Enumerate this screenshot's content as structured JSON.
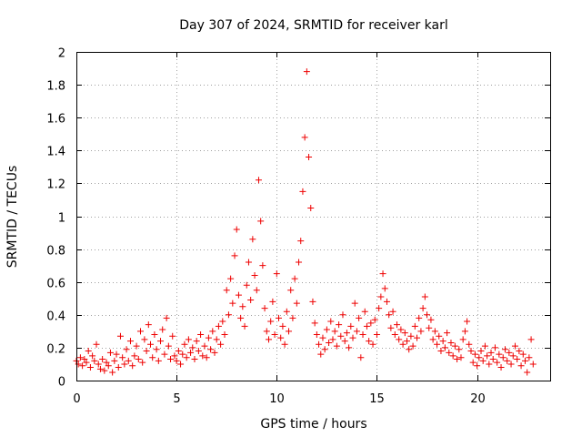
{
  "chart_data": {
    "type": "scatter",
    "title": "Day 307 of 2024, SRMTID for receiver karl",
    "xlabel": "GPS time / hours",
    "ylabel": "SRMTID / TECUs",
    "xlim": [
      0,
      23.65
    ],
    "ylim": [
      0,
      2
    ],
    "xticks": [
      "0",
      "5",
      "10",
      "15",
      "20"
    ],
    "yticks": [
      "0",
      "0.2",
      "0.4",
      "0.6",
      "0.8",
      "1",
      "1.2",
      "1.4",
      "1.6",
      "1.8",
      "2"
    ],
    "grid": true,
    "marker": "plus",
    "series": [
      {
        "name": "SRMTID",
        "color": "#ee0000",
        "points": [
          [
            0.0,
            0.12
          ],
          [
            0.1,
            0.1
          ],
          [
            0.2,
            0.14
          ],
          [
            0.3,
            0.09
          ],
          [
            0.4,
            0.13
          ],
          [
            0.5,
            0.11
          ],
          [
            0.6,
            0.18
          ],
          [
            0.7,
            0.08
          ],
          [
            0.8,
            0.15
          ],
          [
            0.9,
            0.12
          ],
          [
            1.0,
            0.22
          ],
          [
            1.1,
            0.1
          ],
          [
            1.2,
            0.07
          ],
          [
            1.3,
            0.13
          ],
          [
            1.4,
            0.06
          ],
          [
            1.5,
            0.11
          ],
          [
            1.6,
            0.09
          ],
          [
            1.7,
            0.17
          ],
          [
            1.8,
            0.05
          ],
          [
            1.9,
            0.12
          ],
          [
            2.0,
            0.16
          ],
          [
            2.1,
            0.08
          ],
          [
            2.2,
            0.27
          ],
          [
            2.3,
            0.14
          ],
          [
            2.4,
            0.1
          ],
          [
            2.5,
            0.19
          ],
          [
            2.6,
            0.12
          ],
          [
            2.7,
            0.24
          ],
          [
            2.8,
            0.09
          ],
          [
            2.9,
            0.15
          ],
          [
            3.0,
            0.21
          ],
          [
            3.1,
            0.13
          ],
          [
            3.2,
            0.3
          ],
          [
            3.3,
            0.11
          ],
          [
            3.4,
            0.25
          ],
          [
            3.5,
            0.18
          ],
          [
            3.6,
            0.34
          ],
          [
            3.7,
            0.22
          ],
          [
            3.8,
            0.14
          ],
          [
            3.9,
            0.28
          ],
          [
            4.0,
            0.19
          ],
          [
            4.1,
            0.12
          ],
          [
            4.2,
            0.24
          ],
          [
            4.3,
            0.31
          ],
          [
            4.4,
            0.16
          ],
          [
            4.5,
            0.38
          ],
          [
            4.6,
            0.21
          ],
          [
            4.7,
            0.13
          ],
          [
            4.8,
            0.27
          ],
          [
            4.9,
            0.15
          ],
          [
            5.0,
            0.12
          ],
          [
            5.1,
            0.18
          ],
          [
            5.2,
            0.1
          ],
          [
            5.3,
            0.16
          ],
          [
            5.4,
            0.22
          ],
          [
            5.5,
            0.14
          ],
          [
            5.6,
            0.25
          ],
          [
            5.7,
            0.17
          ],
          [
            5.8,
            0.2
          ],
          [
            5.9,
            0.13
          ],
          [
            6.0,
            0.24
          ],
          [
            6.1,
            0.18
          ],
          [
            6.2,
            0.28
          ],
          [
            6.3,
            0.15
          ],
          [
            6.4,
            0.21
          ],
          [
            6.5,
            0.14
          ],
          [
            6.6,
            0.26
          ],
          [
            6.7,
            0.19
          ],
          [
            6.8,
            0.3
          ],
          [
            6.9,
            0.17
          ],
          [
            7.0,
            0.25
          ],
          [
            7.1,
            0.33
          ],
          [
            7.2,
            0.22
          ],
          [
            7.3,
            0.36
          ],
          [
            7.4,
            0.28
          ],
          [
            7.5,
            0.55
          ],
          [
            7.6,
            0.4
          ],
          [
            7.7,
            0.62
          ],
          [
            7.8,
            0.47
          ],
          [
            7.9,
            0.76
          ],
          [
            8.0,
            0.92
          ],
          [
            8.1,
            0.52
          ],
          [
            8.2,
            0.38
          ],
          [
            8.3,
            0.45
          ],
          [
            8.4,
            0.33
          ],
          [
            8.5,
            0.58
          ],
          [
            8.6,
            0.72
          ],
          [
            8.7,
            0.49
          ],
          [
            8.8,
            0.86
          ],
          [
            8.9,
            0.64
          ],
          [
            9.0,
            0.55
          ],
          [
            9.1,
            1.22
          ],
          [
            9.2,
            0.97
          ],
          [
            9.3,
            0.7
          ],
          [
            9.4,
            0.44
          ],
          [
            9.5,
            0.3
          ],
          [
            9.6,
            0.25
          ],
          [
            9.7,
            0.36
          ],
          [
            9.8,
            0.48
          ],
          [
            9.9,
            0.28
          ],
          [
            10.0,
            0.65
          ],
          [
            10.1,
            0.38
          ],
          [
            10.2,
            0.26
          ],
          [
            10.3,
            0.33
          ],
          [
            10.4,
            0.22
          ],
          [
            10.5,
            0.42
          ],
          [
            10.6,
            0.3
          ],
          [
            10.7,
            0.55
          ],
          [
            10.8,
            0.38
          ],
          [
            10.9,
            0.62
          ],
          [
            11.0,
            0.47
          ],
          [
            11.1,
            0.72
          ],
          [
            11.2,
            0.85
          ],
          [
            11.3,
            1.15
          ],
          [
            11.4,
            1.48
          ],
          [
            11.5,
            1.88
          ],
          [
            11.6,
            1.36
          ],
          [
            11.7,
            1.05
          ],
          [
            11.8,
            0.48
          ],
          [
            11.9,
            0.35
          ],
          [
            12.0,
            0.28
          ],
          [
            12.1,
            0.22
          ],
          [
            12.2,
            0.16
          ],
          [
            12.3,
            0.26
          ],
          [
            12.4,
            0.19
          ],
          [
            12.5,
            0.31
          ],
          [
            12.6,
            0.23
          ],
          [
            12.7,
            0.36
          ],
          [
            12.8,
            0.25
          ],
          [
            12.9,
            0.3
          ],
          [
            13.0,
            0.21
          ],
          [
            13.1,
            0.34
          ],
          [
            13.2,
            0.27
          ],
          [
            13.3,
            0.4
          ],
          [
            13.4,
            0.24
          ],
          [
            13.5,
            0.29
          ],
          [
            13.6,
            0.2
          ],
          [
            13.7,
            0.33
          ],
          [
            13.8,
            0.26
          ],
          [
            13.9,
            0.47
          ],
          [
            14.0,
            0.3
          ],
          [
            14.1,
            0.38
          ],
          [
            14.2,
            0.14
          ],
          [
            14.3,
            0.28
          ],
          [
            14.4,
            0.42
          ],
          [
            14.5,
            0.33
          ],
          [
            14.6,
            0.24
          ],
          [
            14.7,
            0.35
          ],
          [
            14.8,
            0.22
          ],
          [
            14.9,
            0.37
          ],
          [
            15.0,
            0.28
          ],
          [
            15.1,
            0.44
          ],
          [
            15.2,
            0.51
          ],
          [
            15.3,
            0.65
          ],
          [
            15.4,
            0.56
          ],
          [
            15.5,
            0.48
          ],
          [
            15.6,
            0.4
          ],
          [
            15.7,
            0.32
          ],
          [
            15.8,
            0.42
          ],
          [
            15.9,
            0.28
          ],
          [
            16.0,
            0.34
          ],
          [
            16.1,
            0.25
          ],
          [
            16.2,
            0.31
          ],
          [
            16.3,
            0.22
          ],
          [
            16.4,
            0.29
          ],
          [
            16.5,
            0.24
          ],
          [
            16.6,
            0.19
          ],
          [
            16.7,
            0.27
          ],
          [
            16.8,
            0.21
          ],
          [
            16.9,
            0.33
          ],
          [
            17.0,
            0.26
          ],
          [
            17.1,
            0.38
          ],
          [
            17.2,
            0.3
          ],
          [
            17.3,
            0.44
          ],
          [
            17.4,
            0.51
          ],
          [
            17.5,
            0.4
          ],
          [
            17.6,
            0.32
          ],
          [
            17.7,
            0.37
          ],
          [
            17.8,
            0.25
          ],
          [
            17.9,
            0.3
          ],
          [
            18.0,
            0.22
          ],
          [
            18.1,
            0.27
          ],
          [
            18.2,
            0.18
          ],
          [
            18.3,
            0.24
          ],
          [
            18.4,
            0.2
          ],
          [
            18.5,
            0.29
          ],
          [
            18.6,
            0.17
          ],
          [
            18.7,
            0.23
          ],
          [
            18.8,
            0.15
          ],
          [
            18.9,
            0.21
          ],
          [
            19.0,
            0.13
          ],
          [
            19.1,
            0.19
          ],
          [
            19.2,
            0.14
          ],
          [
            19.3,
            0.25
          ],
          [
            19.4,
            0.3
          ],
          [
            19.5,
            0.36
          ],
          [
            19.6,
            0.22
          ],
          [
            19.7,
            0.18
          ],
          [
            19.8,
            0.11
          ],
          [
            19.9,
            0.16
          ],
          [
            20.0,
            0.09
          ],
          [
            20.1,
            0.14
          ],
          [
            20.2,
            0.18
          ],
          [
            20.3,
            0.12
          ],
          [
            20.4,
            0.21
          ],
          [
            20.5,
            0.15
          ],
          [
            20.6,
            0.1
          ],
          [
            20.7,
            0.17
          ],
          [
            20.8,
            0.13
          ],
          [
            20.9,
            0.2
          ],
          [
            21.0,
            0.11
          ],
          [
            21.1,
            0.16
          ],
          [
            21.2,
            0.08
          ],
          [
            21.3,
            0.14
          ],
          [
            21.4,
            0.19
          ],
          [
            21.5,
            0.12
          ],
          [
            21.6,
            0.17
          ],
          [
            21.7,
            0.1
          ],
          [
            21.8,
            0.15
          ],
          [
            21.9,
            0.21
          ],
          [
            22.0,
            0.13
          ],
          [
            22.1,
            0.18
          ],
          [
            22.2,
            0.09
          ],
          [
            22.3,
            0.16
          ],
          [
            22.4,
            0.12
          ],
          [
            22.5,
            0.05
          ],
          [
            22.6,
            0.14
          ],
          [
            22.7,
            0.25
          ],
          [
            22.8,
            0.1
          ]
        ]
      }
    ]
  }
}
